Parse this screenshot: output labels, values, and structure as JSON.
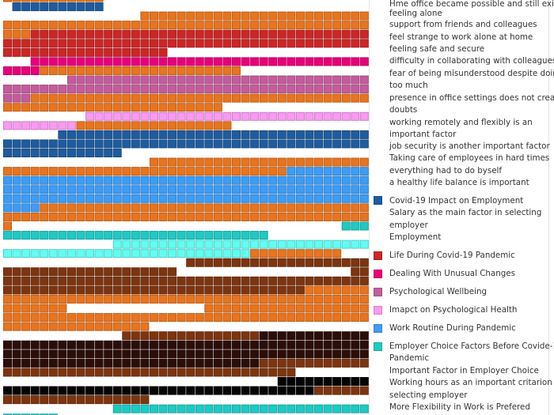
{
  "legend": {
    "lines": [
      "Hme office became possible and still exists",
      "feeling alone",
      "support from friends and colleagues",
      "feel strange to work alone at home",
      "feeling safe and secure",
      "difficulty in collaborating with colleagues",
      "fear of being misunderstood despite doing",
      "too much",
      "presence in office settings does not create",
      "doubts",
      "working remotely and flexibly is an",
      "important factor",
      "job security is another important factor",
      "Taking care of employees in hard times",
      "everything had to do byself",
      "a healthy life balance is important",
      "Covid-19 Impact on Employment",
      "Salary as the main factor in selecting",
      "employer",
      "Employment",
      "Life During Covid-19 Pandemic",
      "Dealing With Unusual Changes",
      "Psychological Wellbeing",
      "Imapct on Psychological Health",
      "Work Routine During Pandemic",
      "Employer Choice Factors Before Covide-19",
      "Pandemic",
      "Important Factor in Employer Choice",
      "Working hours as an important critarion in",
      "selecting employer",
      "More Flexibility in Work is Prefered"
    ],
    "swatches": {
      "covid_impact": "#1f5c9e",
      "life_during": "#cc2626",
      "dealing": "#e8007a",
      "psych_wellbeing": "#c45c9c",
      "psych_health": "#f99af2",
      "work_routine": "#3d9cf5",
      "employer_choice": "#1fc9c4"
    }
  },
  "chart_data": {
    "type": "heatmap",
    "subtype": "waffle",
    "columns": 40,
    "colors": {
      "O": "#e8741e",
      "B": "#1f5c9e",
      "R": "#cc2626",
      "M": "#e8007a",
      "P": "#c45c9c",
      "K": "#f99af2",
      "L": "#3d9cf5",
      "T": "#1fc9c4",
      "C": "#62fdf2",
      "D": "#7d3510",
      "X": "#2c0e08",
      "Z": "#050505",
      "W": null
    },
    "rows": [
      [
        [
          "O",
          11
        ],
        [
          "W",
          29
        ]
      ],
      [
        [
          "W",
          1
        ],
        [
          "B",
          10
        ],
        [
          "W",
          29
        ]
      ],
      [
        [
          "W",
          15
        ],
        [
          "O",
          25
        ]
      ],
      [
        [
          "O",
          40
        ]
      ],
      [
        [
          "O",
          3
        ],
        [
          "R",
          37
        ]
      ],
      [
        [
          "R",
          40
        ]
      ],
      [
        [
          "R",
          18
        ],
        [
          "W",
          22
        ]
      ],
      [
        [
          "W",
          3
        ],
        [
          "M",
          37
        ]
      ],
      [
        [
          "M",
          4
        ],
        [
          "O",
          22
        ],
        [
          "W",
          14
        ]
      ],
      [
        [
          "W",
          7
        ],
        [
          "P",
          33
        ]
      ],
      [
        [
          "P",
          40
        ]
      ],
      [
        [
          "P",
          3
        ],
        [
          "O",
          37
        ]
      ],
      [
        [
          "O",
          24
        ],
        [
          "W",
          16
        ]
      ],
      [
        [
          "W",
          9
        ],
        [
          "K",
          31
        ]
      ],
      [
        [
          "K",
          8
        ],
        [
          "O",
          17
        ],
        [
          "W",
          15
        ]
      ],
      [
        [
          "W",
          6
        ],
        [
          "B",
          34
        ]
      ],
      [
        [
          "B",
          40
        ]
      ],
      [
        [
          "B",
          13
        ],
        [
          "W",
          27
        ]
      ],
      [
        [
          "W",
          16
        ],
        [
          "O",
          24
        ]
      ],
      [
        [
          "O",
          31
        ],
        [
          "L",
          9
        ]
      ],
      [
        [
          "L",
          40
        ]
      ],
      [
        [
          "L",
          40
        ]
      ],
      [
        [
          "L",
          40
        ]
      ],
      [
        [
          "L",
          4
        ],
        [
          "O",
          36
        ]
      ],
      [
        [
          "O",
          40
        ]
      ],
      [
        [
          "O",
          1
        ],
        [
          "W",
          36
        ],
        [
          "T",
          3
        ]
      ],
      [
        [
          "T",
          29
        ],
        [
          "W",
          11
        ]
      ],
      [
        [
          "W",
          12
        ],
        [
          "C",
          28
        ]
      ],
      [
        [
          "C",
          27
        ],
        [
          "O",
          10
        ],
        [
          "W",
          3
        ]
      ],
      [
        [
          "W",
          20
        ],
        [
          "D",
          20
        ]
      ],
      [
        [
          "D",
          19
        ],
        [
          "W",
          19
        ],
        [
          "D",
          2
        ]
      ],
      [
        [
          "D",
          40
        ]
      ],
      [
        [
          "D",
          33
        ],
        [
          "O",
          7
        ]
      ],
      [
        [
          "O",
          40
        ]
      ],
      [
        [
          "O",
          7
        ],
        [
          "W",
          15
        ],
        [
          "O",
          18
        ]
      ],
      [
        [
          "O",
          40
        ]
      ],
      [
        [
          "O",
          16
        ],
        [
          "W",
          24
        ]
      ],
      [
        [
          "W",
          13
        ],
        [
          "D",
          15
        ],
        [
          "X",
          12
        ]
      ],
      [
        [
          "X",
          40
        ]
      ],
      [
        [
          "X",
          40
        ]
      ],
      [
        [
          "X",
          28
        ],
        [
          "D",
          12
        ]
      ],
      [
        [
          "D",
          32
        ],
        [
          "W",
          8
        ]
      ],
      [
        [
          "W",
          30
        ],
        [
          "Z",
          10
        ]
      ],
      [
        [
          "Z",
          34
        ],
        [
          "D",
          6
        ]
      ],
      [
        [
          "D",
          16
        ],
        [
          "W",
          24
        ]
      ],
      [
        [
          "W",
          12
        ],
        [
          "T",
          28
        ]
      ],
      [
        [
          "T",
          6
        ],
        [
          "W",
          34
        ]
      ]
    ]
  }
}
